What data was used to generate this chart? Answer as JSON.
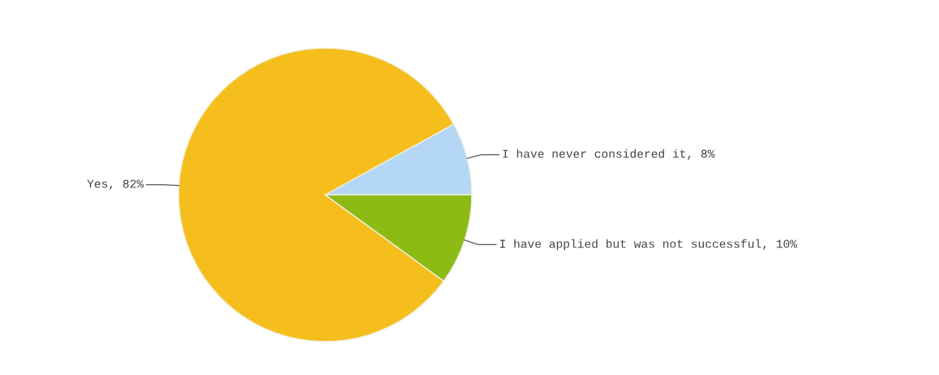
{
  "chart_data": {
    "type": "pie",
    "categories": [
      "I have never considered it",
      "Yes",
      "I have applied but was not successful"
    ],
    "values": [
      8,
      82,
      10
    ],
    "colors": [
      "#b3d7f5",
      "#f5be1d",
      "#8dbb15"
    ],
    "value_labels": [
      "8%",
      "82%",
      "10%"
    ]
  }
}
